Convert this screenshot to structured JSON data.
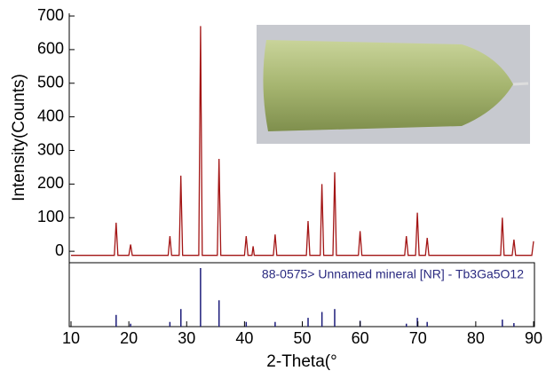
{
  "chart_data": [
    {
      "type": "line",
      "ylabel": "Intensity(Counts)",
      "color": "#a31515",
      "xlim": [
        10,
        90
      ],
      "ylim": [
        -34,
        708
      ],
      "yticks": [
        0,
        100,
        200,
        300,
        400,
        500,
        600,
        700
      ],
      "x": [
        10,
        17.5,
        17.8,
        18.1,
        20.0,
        20.3,
        20.6,
        26.8,
        27.1,
        27.4,
        28.7,
        29.0,
        29.3,
        32.1,
        32.4,
        32.7,
        35.3,
        35.6,
        35.9,
        40.0,
        40.3,
        40.6,
        41.3,
        41.5,
        41.7,
        45.0,
        45.3,
        45.6,
        50.7,
        51.0,
        51.3,
        53.1,
        53.4,
        53.7,
        55.3,
        55.6,
        55.9,
        59.7,
        60.0,
        60.3,
        67.7,
        68.0,
        68.3,
        69.6,
        69.9,
        70.2,
        71.3,
        71.6,
        71.9,
        84.3,
        84.6,
        84.9,
        86.3,
        86.6,
        86.9,
        89.7,
        90
      ],
      "values": [
        -12,
        -12,
        85,
        -12,
        -12,
        20,
        -12,
        -12,
        45,
        -12,
        -12,
        225,
        -12,
        -12,
        670,
        -12,
        -12,
        275,
        -12,
        -12,
        45,
        -12,
        -12,
        15,
        -12,
        -12,
        50,
        -12,
        -12,
        90,
        -12,
        -12,
        200,
        -12,
        -12,
        235,
        -12,
        -12,
        60,
        -12,
        -12,
        45,
        -12,
        -12,
        115,
        -12,
        -12,
        40,
        -12,
        -12,
        100,
        -12,
        -12,
        35,
        -12,
        -12,
        30
      ]
    },
    {
      "type": "stick",
      "title": "88-0575> Unnamed mineral [NR] - Tb3Ga5O12",
      "color": "#1c1c7a",
      "xlabel": "2-Theta(°",
      "xlim": [
        10,
        90
      ],
      "ylim": [
        0,
        100
      ],
      "xticks": [
        10,
        20,
        30,
        40,
        50,
        60,
        70,
        80,
        90
      ],
      "x": [
        17.8,
        20.3,
        27.1,
        29.0,
        32.4,
        35.6,
        40.3,
        45.3,
        51.0,
        53.4,
        55.6,
        60.0,
        68.0,
        69.9,
        71.6,
        84.6,
        86.6
      ],
      "values": [
        20,
        5,
        8,
        30,
        100,
        45,
        8,
        8,
        15,
        25,
        30,
        10,
        5,
        15,
        8,
        12,
        6
      ]
    }
  ]
}
